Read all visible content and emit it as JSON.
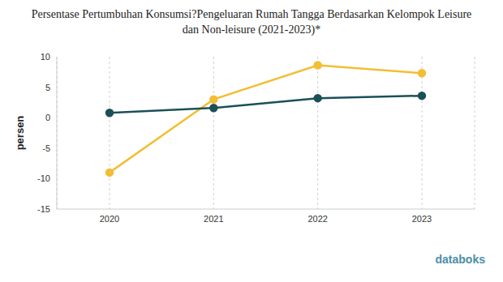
{
  "chart_data": {
    "type": "line",
    "title": "Persentase Pertumbuhan Konsumsi?Pengeluaran Rumah Tangga Berdasarkan Kelompok Leisure\ndan Non-leisure (2021-2023)*",
    "y_label": "persen",
    "categories": [
      "2020",
      "2021",
      "2022",
      "2023"
    ],
    "series": [
      {
        "color": "#f2be33",
        "marker": "circle",
        "values": [
          -9.0,
          3.0,
          8.6,
          7.3
        ]
      },
      {
        "color": "#1c5058",
        "marker": "circle",
        "values": [
          0.8,
          1.6,
          3.2,
          3.6
        ]
      }
    ],
    "ylim": [
      -15,
      10
    ],
    "yticks": [
      -15,
      -10,
      -5,
      0,
      5,
      10
    ],
    "grid": true,
    "annotations": [
      "databoks"
    ]
  }
}
